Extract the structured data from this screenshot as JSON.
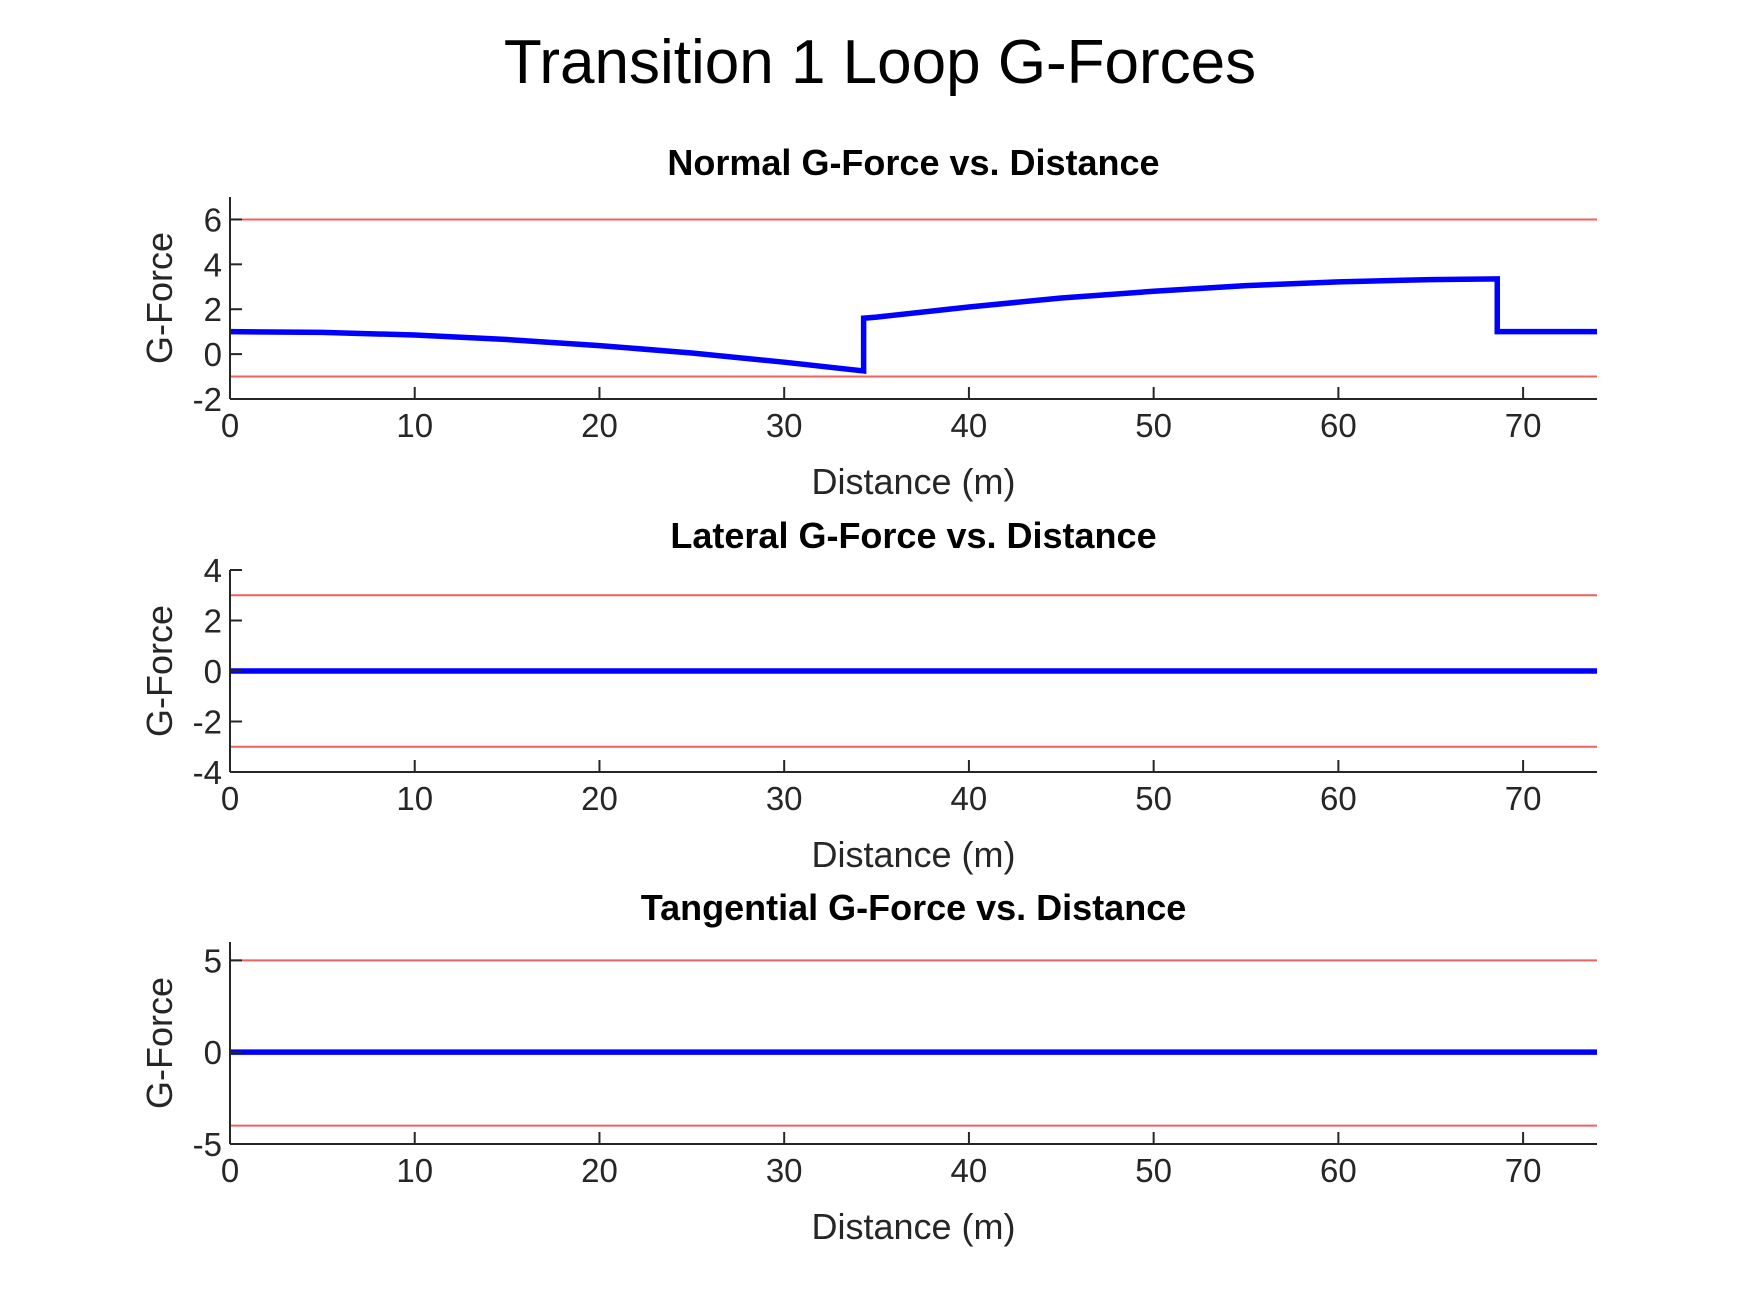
{
  "figure": {
    "title": "Transition 1 Loop G-Forces"
  },
  "colors": {
    "data_line": "#0000ff",
    "limit_line": "#f06060",
    "axis": "#262626"
  },
  "chart_data": [
    {
      "id": "normal",
      "type": "line",
      "title": "Normal G-Force vs. Distance",
      "xlabel": "Distance (m)",
      "ylabel": "G-Force",
      "xlim": [
        0,
        74
      ],
      "ylim": [
        -2,
        7
      ],
      "xticks": [
        0,
        10,
        20,
        30,
        40,
        50,
        60,
        70
      ],
      "yticks": [
        -2,
        0,
        2,
        4,
        6
      ],
      "grid": false,
      "limits": [
        6,
        -1
      ],
      "series": [
        {
          "x": [
            0,
            5,
            10,
            15,
            20,
            25,
            30,
            34.3,
            34.3,
            35,
            40,
            45,
            50,
            55,
            60,
            65,
            68.6,
            68.6,
            74
          ],
          "y": [
            1,
            0.97,
            0.85,
            0.65,
            0.38,
            0.05,
            -0.36,
            -0.75,
            1.6,
            1.65,
            2.1,
            2.5,
            2.8,
            3.05,
            3.22,
            3.32,
            3.35,
            1.0,
            1.0
          ]
        }
      ]
    },
    {
      "id": "lateral",
      "type": "line",
      "title": "Lateral G-Force vs. Distance",
      "xlabel": "Distance (m)",
      "ylabel": "G-Force",
      "xlim": [
        0,
        74
      ],
      "ylim": [
        -4,
        4
      ],
      "xticks": [
        0,
        10,
        20,
        30,
        40,
        50,
        60,
        70
      ],
      "yticks": [
        -4,
        -2,
        0,
        2,
        4
      ],
      "grid": false,
      "limits": [
        3,
        -3
      ],
      "series": [
        {
          "x": [
            0,
            74
          ],
          "y": [
            0,
            0
          ]
        }
      ]
    },
    {
      "id": "tangential",
      "type": "line",
      "title": "Tangential G-Force vs. Distance",
      "xlabel": "Distance (m)",
      "ylabel": "G-Force",
      "xlim": [
        0,
        74
      ],
      "ylim": [
        -5,
        6
      ],
      "xticks": [
        0,
        10,
        20,
        30,
        40,
        50,
        60,
        70
      ],
      "yticks": [
        -5,
        0,
        5
      ],
      "grid": false,
      "limits": [
        5,
        -4
      ],
      "series": [
        {
          "x": [
            0,
            74
          ],
          "y": [
            0,
            0
          ]
        }
      ]
    }
  ]
}
